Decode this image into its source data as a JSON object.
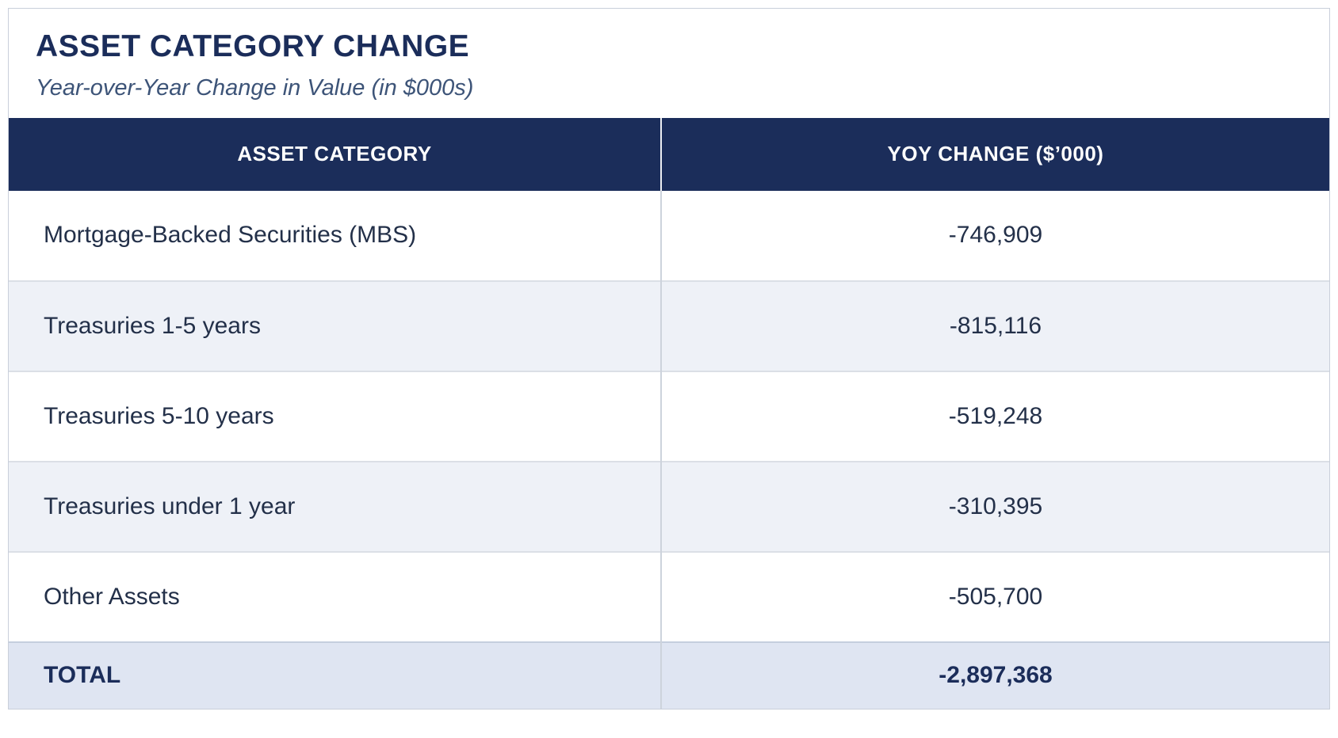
{
  "card": {
    "title": "ASSET CATEGORY CHANGE",
    "subtitle": "Year-over-Year Change in Value (in $000s)"
  },
  "table": {
    "columns": [
      "ASSET CATEGORY",
      "YOY CHANGE ($’000)"
    ],
    "rows": [
      {
        "category": "Mortgage-Backed Securities (MBS)",
        "yoy_change": "-746,909"
      },
      {
        "category": "Treasuries 1-5 years",
        "yoy_change": "-815,116"
      },
      {
        "category": "Treasuries 5-10 years",
        "yoy_change": "-519,248"
      },
      {
        "category": "Treasuries under 1 year",
        "yoy_change": "-310,395"
      },
      {
        "category": "Other Assets",
        "yoy_change": "-505,700"
      }
    ],
    "total": {
      "label": "TOTAL",
      "yoy_change": "-2,897,368"
    }
  },
  "colors": {
    "header_bg": "#1b2d5a",
    "header_text": "#ffffff",
    "title_color": "#1b2d5a",
    "subtitle_color": "#3d5478",
    "body_text": "#233049",
    "row_bg": "#ffffff",
    "row_alt_bg": "#eef1f7",
    "total_bg": "#dfe5f2",
    "divider": "#cdd3dc",
    "row_border": "#dbdfe6",
    "total_border": "#c5cede",
    "card_border": "#c9cfda"
  },
  "chart_data": {
    "type": "table",
    "title": "ASSET CATEGORY CHANGE",
    "subtitle": "Year-over-Year Change in Value (in $000s)",
    "columns": [
      "ASSET CATEGORY",
      "YOY CHANGE ($’000)"
    ],
    "categories": [
      "Mortgage-Backed Securities (MBS)",
      "Treasuries 1-5 years",
      "Treasuries 5-10 years",
      "Treasuries under 1 year",
      "Other Assets"
    ],
    "values": [
      -746909,
      -815116,
      -519248,
      -310395,
      -505700
    ],
    "total": -2897368,
    "units": "thousands of dollars"
  }
}
